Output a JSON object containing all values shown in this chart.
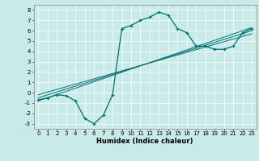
{
  "xlabel": "Humidex (Indice chaleur)",
  "bg_color": "#c8eae8",
  "line_color": "#007070",
  "xlim": [
    -0.5,
    23.5
  ],
  "ylim": [
    -3.5,
    8.5
  ],
  "xticks": [
    0,
    1,
    2,
    3,
    4,
    5,
    6,
    7,
    8,
    9,
    10,
    11,
    12,
    13,
    14,
    15,
    16,
    17,
    18,
    19,
    20,
    21,
    22,
    23
  ],
  "yticks": [
    -3,
    -2,
    -1,
    0,
    1,
    2,
    3,
    4,
    5,
    6,
    7,
    8
  ],
  "curve1_x": [
    0,
    1,
    2,
    3,
    4,
    5,
    6,
    7,
    8,
    9,
    10,
    11,
    12,
    13,
    14,
    15,
    16,
    17,
    18,
    19,
    20,
    21,
    22,
    23
  ],
  "curve1_y": [
    -0.7,
    -0.5,
    -0.2,
    -0.3,
    -0.8,
    -2.5,
    -3.0,
    -2.2,
    -0.2,
    6.2,
    6.5,
    7.0,
    7.3,
    7.8,
    7.5,
    6.2,
    5.8,
    4.5,
    4.5,
    4.2,
    4.2,
    4.5,
    5.8,
    6.2
  ],
  "line1_x": [
    0,
    23
  ],
  "line1_y": [
    -0.8,
    6.3
  ],
  "line2_x": [
    0,
    23
  ],
  "line2_y": [
    -0.5,
    6.0
  ],
  "line3_x": [
    0,
    23
  ],
  "line3_y": [
    -0.2,
    5.7
  ],
  "grid_color": "#b0d8d4",
  "tick_fontsize": 5,
  "xlabel_fontsize": 6
}
